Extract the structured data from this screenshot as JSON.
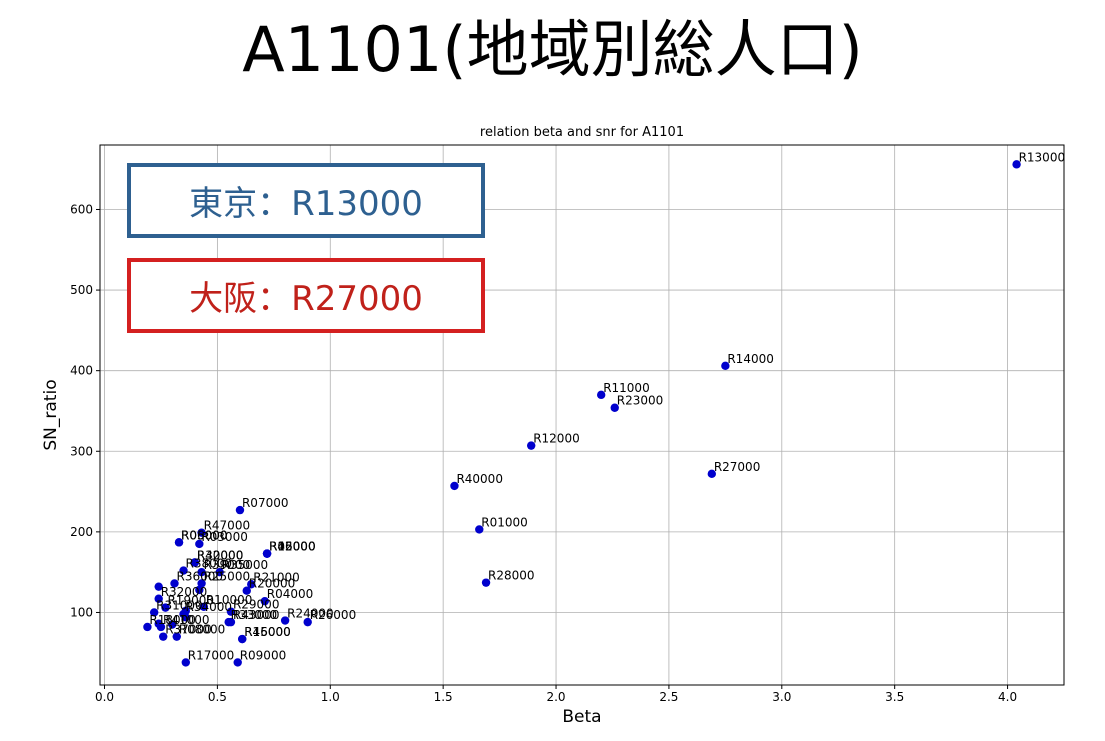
{
  "slide": {
    "title": "A1101(地域別総人口)"
  },
  "callouts": [
    {
      "text": "東京：R13000",
      "color": "#2e6090",
      "border": "#2e6090"
    },
    {
      "text": "大阪：R27000",
      "color": "#c0211a",
      "border": "#d42020"
    }
  ],
  "chart_data": {
    "type": "scatter",
    "title": "relation beta and snr for A1101",
    "xlabel": "Beta",
    "ylabel": "SN_ratio",
    "xlim": [
      -0.02,
      4.25
    ],
    "ylim": [
      10,
      680
    ],
    "xticks": [
      "0.0",
      "0.5",
      "1.0",
      "1.5",
      "2.0",
      "2.5",
      "3.0",
      "3.5",
      "4.0"
    ],
    "xtick_values": [
      0,
      0.5,
      1.0,
      1.5,
      2.0,
      2.5,
      3.0,
      3.5,
      4.0
    ],
    "yticks": [
      "100",
      "200",
      "300",
      "400",
      "500",
      "600"
    ],
    "ytick_values": [
      100,
      200,
      300,
      400,
      500,
      600
    ],
    "grid": true,
    "marker_color": "#0000cd",
    "points": [
      {
        "label": "R13000",
        "x": 4.04,
        "y": 656
      },
      {
        "label": "R14000",
        "x": 2.75,
        "y": 406
      },
      {
        "label": "R11000",
        "x": 2.2,
        "y": 370
      },
      {
        "label": "R23000",
        "x": 2.26,
        "y": 354
      },
      {
        "label": "R12000",
        "x": 1.89,
        "y": 307
      },
      {
        "label": "R27000",
        "x": 2.69,
        "y": 272
      },
      {
        "label": "R40000",
        "x": 1.55,
        "y": 257
      },
      {
        "label": "R01000",
        "x": 1.66,
        "y": 203
      },
      {
        "label": "R28000",
        "x": 1.69,
        "y": 137
      },
      {
        "label": "R07000",
        "x": 0.6,
        "y": 227
      },
      {
        "label": "R47000",
        "x": 0.43,
        "y": 199
      },
      {
        "label": "R05000",
        "x": 0.33,
        "y": 187
      },
      {
        "label": "R06000",
        "x": 0.33,
        "y": 187
      },
      {
        "label": "R03000",
        "x": 0.42,
        "y": 185
      },
      {
        "label": "R02000",
        "x": 0.72,
        "y": 173
      },
      {
        "label": "R15000",
        "x": 0.72,
        "y": 173
      },
      {
        "label": "R46000",
        "x": 0.72,
        "y": 173
      },
      {
        "label": "R30000",
        "x": 0.4,
        "y": 162
      },
      {
        "label": "R42000",
        "x": 0.4,
        "y": 162
      },
      {
        "label": "R38000",
        "x": 0.35,
        "y": 152
      },
      {
        "label": "R39000",
        "x": 0.43,
        "y": 150
      },
      {
        "label": "R35000",
        "x": 0.51,
        "y": 150
      },
      {
        "label": "R36000",
        "x": 0.31,
        "y": 136
      },
      {
        "label": "R25000",
        "x": 0.43,
        "y": 136
      },
      {
        "label": "R21000",
        "x": 0.65,
        "y": 135
      },
      {
        "label": "R20000",
        "x": 0.63,
        "y": 127
      },
      {
        "label": "R04000",
        "x": 0.71,
        "y": 114
      },
      {
        "label": "R32000",
        "x": 0.24,
        "y": 117
      },
      {
        "label": "R19000",
        "x": 0.27,
        "y": 106
      },
      {
        "label": "R29000",
        "x": 0.56,
        "y": 101
      },
      {
        "label": "R31000",
        "x": 0.22,
        "y": 100
      },
      {
        "label": "R34000",
        "x": 0.35,
        "y": 98
      },
      {
        "label": "R24000",
        "x": 0.8,
        "y": 90
      },
      {
        "label": "R43000",
        "x": 0.56,
        "y": 88
      },
      {
        "label": "R26000",
        "x": 0.9,
        "y": 88
      },
      {
        "label": "R18000",
        "x": 0.19,
        "y": 82
      },
      {
        "label": "R45000",
        "x": 0.61,
        "y": 67
      },
      {
        "label": "R16000",
        "x": 0.61,
        "y": 67
      },
      {
        "label": "R08000",
        "x": 0.32,
        "y": 70
      },
      {
        "label": "R37000",
        "x": 0.26,
        "y": 70
      },
      {
        "label": "R09000",
        "x": 0.59,
        "y": 38
      },
      {
        "label": "R17000",
        "x": 0.36,
        "y": 38
      },
      {
        "label": "R41000",
        "x": 0.25,
        "y": 82
      },
      {
        "label": "R33000",
        "x": 0.55,
        "y": 88
      },
      {
        "label": "R10000",
        "x": 0.44,
        "y": 107
      }
    ],
    "extra_points": [
      {
        "x": 0.24,
        "y": 132
      },
      {
        "x": 0.36,
        "y": 94
      },
      {
        "x": 0.3,
        "y": 85
      },
      {
        "x": 0.42,
        "y": 128
      },
      {
        "x": 0.36,
        "y": 102
      },
      {
        "x": 0.24,
        "y": 86
      }
    ]
  }
}
